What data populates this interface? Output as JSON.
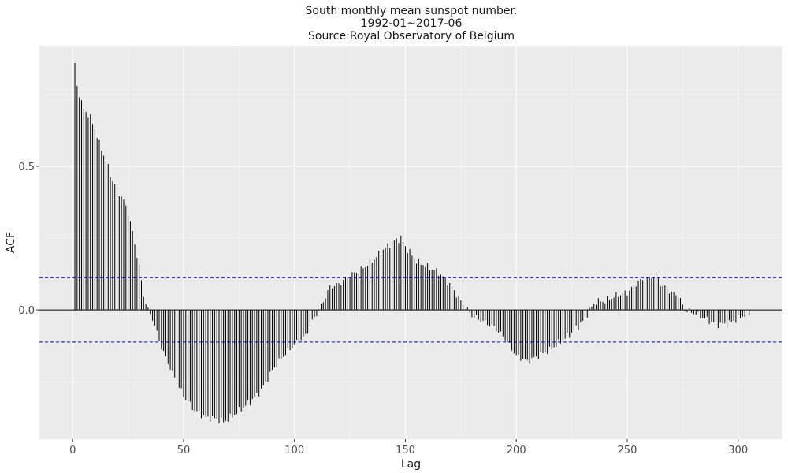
{
  "chart_data": {
    "type": "bar",
    "title": "South monthly mean sunspot number.",
    "subtitle": "1992-01~2017-06",
    "caption": "Source:Royal Observatory of Belgium",
    "xlabel": "Lag",
    "ylabel": "ACF",
    "xlim": [
      -15,
      320
    ],
    "ylim": [
      -0.45,
      0.92
    ],
    "x_ticks": [
      0,
      50,
      100,
      150,
      200,
      250,
      300
    ],
    "y_ticks": [
      0.0,
      0.5
    ],
    "y_tick_labels": [
      "0.0",
      "0.5"
    ],
    "confidence_bound": 0.112,
    "confidence_color": "#0000cc",
    "panel_color": "#ebebeb",
    "grid": true,
    "anchors": [
      [
        1,
        0.86
      ],
      [
        2,
        0.78
      ],
      [
        3,
        0.74
      ],
      [
        5,
        0.7
      ],
      [
        8,
        0.67
      ],
      [
        10,
        0.63
      ],
      [
        12,
        0.58
      ],
      [
        15,
        0.52
      ],
      [
        18,
        0.45
      ],
      [
        20,
        0.42
      ],
      [
        23,
        0.38
      ],
      [
        25,
        0.34
      ],
      [
        27,
        0.27
      ],
      [
        30,
        0.15
      ],
      [
        32,
        0.05
      ],
      [
        34,
        0.0
      ],
      [
        36,
        -0.03
      ],
      [
        40,
        -0.13
      ],
      [
        45,
        -0.22
      ],
      [
        50,
        -0.3
      ],
      [
        55,
        -0.35
      ],
      [
        60,
        -0.375
      ],
      [
        65,
        -0.38
      ],
      [
        68,
        -0.39
      ],
      [
        72,
        -0.37
      ],
      [
        80,
        -0.32
      ],
      [
        85,
        -0.28
      ],
      [
        90,
        -0.21
      ],
      [
        95,
        -0.16
      ],
      [
        100,
        -0.12
      ],
      [
        105,
        -0.09
      ],
      [
        108,
        -0.04
      ],
      [
        111,
        0.0
      ],
      [
        113,
        0.03
      ],
      [
        116,
        0.08
      ],
      [
        120,
        0.09
      ],
      [
        125,
        0.12
      ],
      [
        130,
        0.14
      ],
      [
        135,
        0.17
      ],
      [
        140,
        0.21
      ],
      [
        145,
        0.24
      ],
      [
        148,
        0.25
      ],
      [
        150,
        0.22
      ],
      [
        155,
        0.17
      ],
      [
        160,
        0.15
      ],
      [
        165,
        0.13
      ],
      [
        170,
        0.09
      ],
      [
        175,
        0.03
      ],
      [
        178,
        0.0
      ],
      [
        180,
        -0.02
      ],
      [
        185,
        -0.04
      ],
      [
        190,
        -0.06
      ],
      [
        195,
        -0.1
      ],
      [
        200,
        -0.16
      ],
      [
        205,
        -0.18
      ],
      [
        210,
        -0.16
      ],
      [
        215,
        -0.14
      ],
      [
        220,
        -0.11
      ],
      [
        225,
        -0.08
      ],
      [
        230,
        -0.04
      ],
      [
        233,
        0.0
      ],
      [
        236,
        0.03
      ],
      [
        240,
        0.03
      ],
      [
        245,
        0.05
      ],
      [
        250,
        0.06
      ],
      [
        255,
        0.1
      ],
      [
        260,
        0.11
      ],
      [
        263,
        0.125
      ],
      [
        265,
        0.09
      ],
      [
        270,
        0.06
      ],
      [
        273,
        0.05
      ],
      [
        276,
        0.0
      ],
      [
        280,
        -0.01
      ],
      [
        285,
        -0.03
      ],
      [
        290,
        -0.05
      ],
      [
        295,
        -0.05
      ],
      [
        300,
        -0.03
      ],
      [
        305,
        -0.01
      ]
    ],
    "lag_range": [
      1,
      305
    ]
  }
}
